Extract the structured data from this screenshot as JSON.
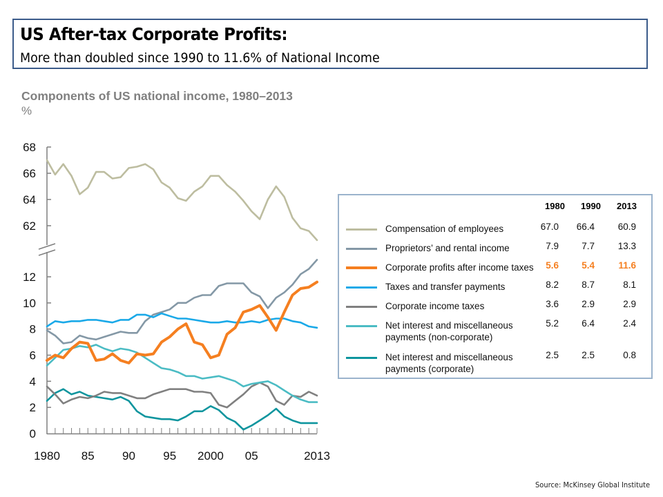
{
  "header": {
    "title": "US After-tax Corporate Profits:",
    "subtitle": "More than doubled since 1990 to 11.6% of National Income"
  },
  "footer": {
    "source": "Source: McKinsey Global Institute"
  },
  "chart_data": {
    "type": "line",
    "title": "Components of US national income, 1980–2013",
    "unit": "%",
    "xlabel": "",
    "ylabel": "%",
    "x": [
      1980,
      1981,
      1982,
      1983,
      1984,
      1985,
      1986,
      1987,
      1988,
      1989,
      1990,
      1991,
      1992,
      1993,
      1994,
      1995,
      1996,
      1997,
      1998,
      1999,
      2000,
      2001,
      2002,
      2003,
      2004,
      2005,
      2006,
      2007,
      2008,
      2009,
      2010,
      2011,
      2012,
      2013
    ],
    "x_tick_labels": [
      {
        "year": 1980,
        "label": "1980"
      },
      {
        "year": 1985,
        "label": "85"
      },
      {
        "year": 1990,
        "label": "90"
      },
      {
        "year": 1995,
        "label": "95"
      },
      {
        "year": 2000,
        "label": "2000"
      },
      {
        "year": 2005,
        "label": "05"
      },
      {
        "year": 2013,
        "label": "2013"
      }
    ],
    "y_axis_broken": true,
    "y_upper": {
      "range": [
        61,
        68
      ],
      "ticks": [
        "62",
        "64",
        "66",
        "68"
      ],
      "tick_values": [
        62,
        64,
        66,
        68
      ]
    },
    "y_lower": {
      "range": [
        0,
        13.5
      ],
      "ticks": [
        "0",
        "2",
        "4",
        "6",
        "8",
        "10",
        "12"
      ],
      "tick_values": [
        0,
        2,
        4,
        6,
        8,
        10,
        12
      ]
    },
    "grid": false,
    "legend_position": "right",
    "legend_columns": [
      "1980",
      "1990",
      "2013"
    ],
    "series": [
      {
        "name": "Compensation of employees",
        "color": "#bdbda0",
        "panel": "upper",
        "highlight": false,
        "table": [
          "67.0",
          "66.4",
          "60.9"
        ],
        "values": [
          67.0,
          65.9,
          66.7,
          65.8,
          64.4,
          64.9,
          66.1,
          66.1,
          65.6,
          65.7,
          66.4,
          66.5,
          66.7,
          66.3,
          65.3,
          64.9,
          64.1,
          63.9,
          64.6,
          65.0,
          65.8,
          65.8,
          65.1,
          64.6,
          63.9,
          63.1,
          62.5,
          64.0,
          65.0,
          64.2,
          62.6,
          61.8,
          61.6,
          60.9
        ]
      },
      {
        "name": "Proprietors’ and rental income",
        "color": "#8498a6",
        "panel": "lower",
        "highlight": false,
        "table": [
          "7.9",
          "7.7",
          "13.3"
        ],
        "values": [
          7.9,
          7.5,
          6.9,
          7.0,
          7.5,
          7.3,
          7.2,
          7.4,
          7.6,
          7.8,
          7.7,
          7.7,
          8.6,
          9.1,
          9.3,
          9.5,
          10.0,
          10.0,
          10.4,
          10.6,
          10.6,
          11.3,
          11.5,
          11.5,
          11.5,
          10.8,
          10.5,
          9.6,
          10.4,
          10.8,
          11.4,
          12.2,
          12.6,
          13.3
        ]
      },
      {
        "name": "Corporate profits after income taxes",
        "color": "#f57f20",
        "panel": "lower",
        "highlight": true,
        "table": [
          "5.6",
          "5.4",
          "11.6"
        ],
        "values": [
          5.6,
          6.0,
          5.8,
          6.5,
          7.0,
          6.9,
          5.6,
          5.7,
          6.1,
          5.6,
          5.4,
          6.1,
          6.0,
          6.1,
          7.0,
          7.4,
          8.0,
          8.4,
          7.0,
          6.8,
          5.8,
          6.0,
          7.6,
          8.1,
          9.3,
          9.5,
          9.8,
          8.9,
          7.9,
          9.3,
          10.6,
          11.1,
          11.2,
          11.6
        ]
      },
      {
        "name": "Taxes and transfer payments",
        "color": "#1aa9e8",
        "panel": "lower",
        "highlight": false,
        "table": [
          "8.2",
          "8.7",
          "8.1"
        ],
        "values": [
          8.2,
          8.6,
          8.5,
          8.6,
          8.6,
          8.7,
          8.7,
          8.6,
          8.5,
          8.7,
          8.7,
          9.1,
          9.1,
          8.9,
          9.2,
          9.0,
          8.8,
          8.8,
          8.7,
          8.6,
          8.5,
          8.5,
          8.6,
          8.5,
          8.5,
          8.6,
          8.5,
          8.7,
          8.8,
          8.8,
          8.6,
          8.5,
          8.2,
          8.1
        ]
      },
      {
        "name": "Corporate income taxes",
        "color": "#808080",
        "panel": "lower",
        "highlight": false,
        "table": [
          "3.6",
          "2.9",
          "2.9"
        ],
        "values": [
          3.6,
          3.0,
          2.3,
          2.6,
          2.8,
          2.7,
          2.9,
          3.2,
          3.1,
          3.1,
          2.9,
          2.7,
          2.7,
          3.0,
          3.2,
          3.4,
          3.4,
          3.4,
          3.2,
          3.2,
          3.1,
          2.2,
          2.0,
          2.5,
          3.0,
          3.6,
          3.9,
          3.6,
          2.5,
          2.2,
          2.9,
          2.8,
          3.2,
          2.9
        ]
      },
      {
        "name": "Net interest and miscellaneous payments (non-corporate)",
        "color": "#4bbcc4",
        "panel": "lower",
        "highlight": false,
        "table": [
          "5.2",
          "6.4",
          "2.4"
        ],
        "values": [
          5.2,
          5.8,
          6.4,
          6.5,
          6.7,
          6.6,
          6.8,
          6.5,
          6.3,
          6.5,
          6.4,
          6.2,
          5.8,
          5.4,
          5.0,
          4.9,
          4.7,
          4.4,
          4.4,
          4.2,
          4.3,
          4.4,
          4.2,
          4.0,
          3.6,
          3.8,
          3.9,
          4.0,
          3.7,
          3.3,
          2.9,
          2.6,
          2.4,
          2.4
        ]
      },
      {
        "name": "Net interest and miscellaneous payments (corporate)",
        "color": "#0e959e",
        "panel": "lower",
        "highlight": false,
        "table": [
          "2.5",
          "2.5",
          "0.8"
        ],
        "values": [
          2.5,
          3.1,
          3.4,
          3.0,
          3.2,
          2.9,
          2.8,
          2.7,
          2.6,
          2.8,
          2.5,
          1.7,
          1.3,
          1.2,
          1.1,
          1.1,
          1.0,
          1.3,
          1.7,
          1.7,
          2.1,
          1.8,
          1.2,
          0.9,
          0.3,
          0.6,
          1.0,
          1.4,
          1.9,
          1.3,
          1.0,
          0.8,
          0.8,
          0.8
        ]
      }
    ]
  },
  "legend": {
    "columns": [
      "1980",
      "1990",
      "2013"
    ],
    "rows": [
      {
        "label_lines": [
          "Compensation of employees"
        ],
        "values": [
          "67.0",
          "66.4",
          "60.9"
        ]
      },
      {
        "label_lines": [
          "Proprietors’ and rental income"
        ],
        "values": [
          "7.9",
          "7.7",
          "13.3"
        ]
      },
      {
        "label_lines": [
          "Corporate profits after income taxes"
        ],
        "values": [
          "5.6",
          "5.4",
          "11.6"
        ]
      },
      {
        "label_lines": [
          "Taxes and transfer payments"
        ],
        "values": [
          "8.2",
          "8.7",
          "8.1"
        ]
      },
      {
        "label_lines": [
          "Corporate income taxes"
        ],
        "values": [
          "3.6",
          "2.9",
          "2.9"
        ]
      },
      {
        "label_lines": [
          "Net interest and miscellaneous",
          "payments (non-corporate)"
        ],
        "values": [
          "5.2",
          "6.4",
          "2.4"
        ]
      },
      {
        "label_lines": [
          "Net interest and miscellaneous",
          "payments (corporate)"
        ],
        "values": [
          "2.5",
          "2.5",
          "0.8"
        ]
      }
    ]
  }
}
